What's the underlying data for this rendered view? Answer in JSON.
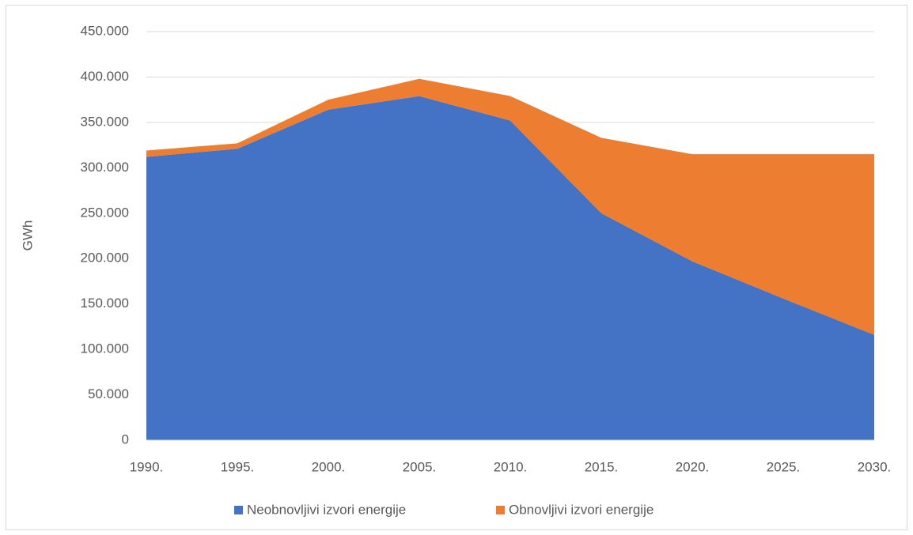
{
  "chart_data": {
    "type": "stacked_area",
    "y_label": "GWh",
    "categories": [
      "1990.",
      "1995.",
      "2000.",
      "2005.",
      "2010.",
      "2015.",
      "2020.",
      "2025.",
      "2030."
    ],
    "series": [
      {
        "name": "Neobnovljivi izvori energije",
        "color": "#4472c4",
        "values": [
          312000,
          321000,
          364000,
          379000,
          352000,
          250000,
          197000,
          156000,
          116000
        ]
      },
      {
        "name": "Obnovljivi izvori energije",
        "color": "#ed7d31",
        "values": [
          7000,
          6000,
          11000,
          19000,
          27000,
          83000,
          118000,
          159000,
          199000
        ]
      }
    ],
    "ylim": [
      0,
      450000
    ],
    "yticks": [
      0,
      {
        "value": 50000,
        "label": "50.000"
      },
      {
        "value": 100000,
        "label": "100.000"
      },
      {
        "value": 150000,
        "label": "150.000"
      },
      {
        "value": 200000,
        "label": "200.000"
      },
      {
        "value": 250000,
        "label": "250.000"
      },
      {
        "value": 300000,
        "label": "300.000"
      },
      {
        "value": 350000,
        "label": "350.000"
      },
      {
        "value": 400000,
        "label": "400.000"
      },
      {
        "value": 450000,
        "label": "450.000"
      }
    ],
    "grid": true,
    "legend": "bottom"
  }
}
